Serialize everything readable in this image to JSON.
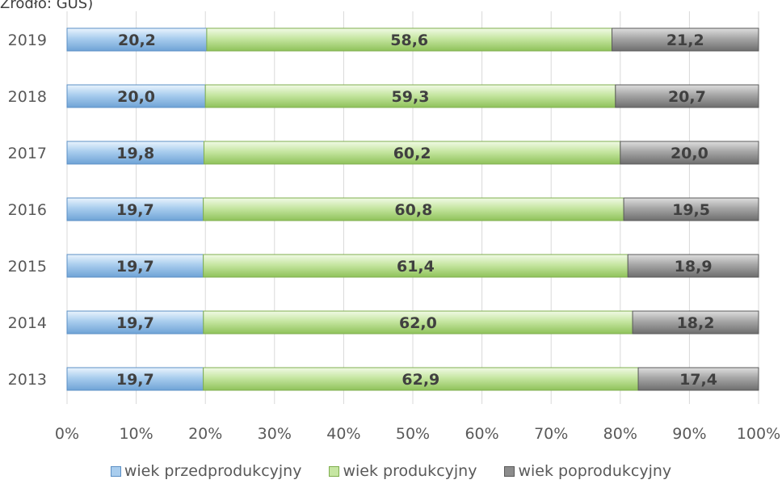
{
  "source_note": "Źródło: GUS)",
  "chart_data": {
    "type": "bar",
    "orientation": "horizontal",
    "stacking": "percent",
    "categories": [
      "2019",
      "2018",
      "2017",
      "2016",
      "2015",
      "2014",
      "2013"
    ],
    "series": [
      {
        "name": "wiek przedprodukcyjny",
        "color": "#a9cdee",
        "values": [
          20.2,
          20.0,
          19.8,
          19.7,
          19.7,
          19.7,
          19.7
        ],
        "labels": [
          "20,2",
          "20,0",
          "19,8",
          "19,7",
          "19,7",
          "19,7",
          "19,7"
        ]
      },
      {
        "name": "wiek produkcyjny",
        "color": "#c6e6a2",
        "values": [
          58.6,
          59.3,
          60.2,
          60.8,
          61.4,
          62.0,
          62.9
        ],
        "labels": [
          "58,6",
          "59,3",
          "60,2",
          "60,8",
          "61,4",
          "62,0",
          "62,9"
        ]
      },
      {
        "name": "wiek poprodukcyjny",
        "color": "#a6a6a6",
        "values": [
          21.2,
          20.7,
          20.0,
          19.5,
          18.9,
          18.2,
          17.4
        ],
        "labels": [
          "21,2",
          "20,7",
          "20,0",
          "19,5",
          "18,9",
          "18,2",
          "17,4"
        ]
      }
    ],
    "x_ticks": [
      "0%",
      "10%",
      "20%",
      "30%",
      "40%",
      "50%",
      "60%",
      "70%",
      "80%",
      "90%",
      "100%"
    ],
    "xlim": [
      0,
      100
    ],
    "grid": "vertical",
    "legend": "bottom"
  }
}
